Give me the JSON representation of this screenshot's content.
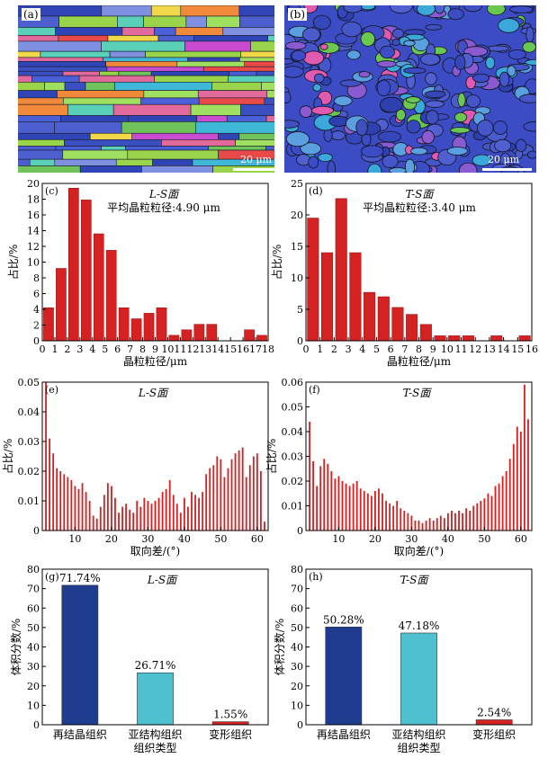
{
  "micrographs": [
    {
      "label": "(a)",
      "scale_bar": "20 μm"
    },
    {
      "label": "(b)",
      "scale_bar": "20 μm"
    }
  ],
  "colors": {
    "bar_red": "#d42222",
    "bar_navy": "#1f3c8f",
    "bar_cyan": "#4ec0d0",
    "bar_deform": "#d42222"
  },
  "chart_data": [
    {
      "type": "bar",
      "panel": "(c)",
      "title": "L-S面",
      "subtitle": "平均晶粒粒径:4.90 μm",
      "xlabel": "晶粒粒径/μm",
      "ylabel": "占比/%",
      "xlim": [
        0,
        18
      ],
      "ylim": [
        0,
        20
      ],
      "xticks": [
        0,
        1,
        2,
        3,
        4,
        5,
        6,
        7,
        8,
        9,
        10,
        11,
        12,
        13,
        14,
        15,
        16,
        17,
        18
      ],
      "yticks": [
        0,
        2,
        4,
        6,
        8,
        10,
        12,
        14,
        16,
        18,
        20
      ],
      "x": [
        0.5,
        1.5,
        2.5,
        3.5,
        4.5,
        5.5,
        6.5,
        7.5,
        8.5,
        9.5,
        10.5,
        11.5,
        12.5,
        13.5,
        16.5,
        17.5
      ],
      "values": [
        4.2,
        9.2,
        19.4,
        17.9,
        13.6,
        11.5,
        4.2,
        2.8,
        3.5,
        4.2,
        0.7,
        1.4,
        2.1,
        2.1,
        1.4,
        0.7
      ]
    },
    {
      "type": "bar",
      "panel": "(d)",
      "title": "T-S面",
      "subtitle": "平均晶粒粒径:3.40 μm",
      "xlabel": "晶粒粒径/μm",
      "ylabel": "占比/%",
      "xlim": [
        0,
        16
      ],
      "ylim": [
        0,
        25
      ],
      "xticks": [
        0,
        1,
        2,
        3,
        4,
        5,
        6,
        7,
        8,
        9,
        10,
        11,
        12,
        13,
        14,
        15,
        16
      ],
      "yticks": [
        0,
        5,
        10,
        15,
        20,
        25
      ],
      "x": [
        0.5,
        1.5,
        2.5,
        3.5,
        4.5,
        5.5,
        6.5,
        7.5,
        8.5,
        9.5,
        10.5,
        11.5,
        13.5,
        15.5
      ],
      "values": [
        19.5,
        14.0,
        22.6,
        14.0,
        7.7,
        7.0,
        5.3,
        4.2,
        2.6,
        0.8,
        0.8,
        0.8,
        0.8,
        0.8
      ]
    },
    {
      "type": "bar",
      "panel": "(e)",
      "title": "L-S面",
      "xlabel": "取向差/(°)",
      "ylabel": "占比/%",
      "xlim": [
        1,
        63
      ],
      "ylim": [
        0,
        0.05
      ],
      "xticks": [
        10,
        20,
        30,
        40,
        50,
        60
      ],
      "yticks": [
        0,
        0.01,
        0.02,
        0.03,
        0.04,
        0.05
      ],
      "x": [
        2,
        3,
        4,
        5,
        6,
        7,
        8,
        9,
        10,
        11,
        12,
        13,
        14,
        15,
        16,
        17,
        18,
        19,
        20,
        21,
        22,
        23,
        24,
        25,
        26,
        27,
        28,
        29,
        30,
        31,
        32,
        33,
        34,
        35,
        36,
        37,
        38,
        39,
        40,
        41,
        42,
        43,
        44,
        45,
        46,
        47,
        48,
        49,
        50,
        51,
        52,
        53,
        54,
        55,
        56,
        57,
        58,
        59,
        60,
        61,
        62
      ],
      "values": [
        0.05,
        0.031,
        0.026,
        0.021,
        0.02,
        0.019,
        0.018,
        0.017,
        0.015,
        0.014,
        0.016,
        0.013,
        0.01,
        0.005,
        0.004,
        0.008,
        0.012,
        0.016,
        0.015,
        0.011,
        0.006,
        0.008,
        0.009,
        0.007,
        0.006,
        0.01,
        0.008,
        0.011,
        0.01,
        0.009,
        0.01,
        0.011,
        0.013,
        0.014,
        0.017,
        0.012,
        0.009,
        0.006,
        0.011,
        0.008,
        0.013,
        0.012,
        0.011,
        0.013,
        0.019,
        0.021,
        0.022,
        0.025,
        0.024,
        0.018,
        0.021,
        0.024,
        0.026,
        0.027,
        0.028,
        0.018,
        0.022,
        0.025,
        0.026,
        0.02,
        0.003
      ],
      "title2": ""
    },
    {
      "type": "bar",
      "panel": "(f)",
      "title": "T-S面",
      "xlabel": "取向差/(°)",
      "ylabel": "占比/%",
      "xlim": [
        1,
        63
      ],
      "ylim": [
        0,
        0.06
      ],
      "xticks": [
        10,
        20,
        30,
        40,
        50,
        60
      ],
      "yticks": [
        0,
        0.01,
        0.02,
        0.03,
        0.04,
        0.05,
        0.06
      ],
      "x": [
        2,
        3,
        4,
        5,
        6,
        7,
        8,
        9,
        10,
        11,
        12,
        13,
        14,
        15,
        16,
        17,
        18,
        19,
        20,
        21,
        22,
        23,
        24,
        25,
        26,
        27,
        28,
        29,
        30,
        31,
        32,
        33,
        34,
        35,
        36,
        37,
        38,
        39,
        40,
        41,
        42,
        43,
        44,
        45,
        46,
        47,
        48,
        49,
        50,
        51,
        52,
        53,
        54,
        55,
        56,
        57,
        58,
        59,
        60,
        61,
        62
      ],
      "values": [
        0.044,
        0.028,
        0.018,
        0.026,
        0.029,
        0.027,
        0.024,
        0.021,
        0.022,
        0.02,
        0.019,
        0.018,
        0.019,
        0.02,
        0.017,
        0.016,
        0.015,
        0.014,
        0.016,
        0.017,
        0.015,
        0.012,
        0.011,
        0.01,
        0.012,
        0.009,
        0.008,
        0.007,
        0.006,
        0.004,
        0.004,
        0.003,
        0.004,
        0.005,
        0.004,
        0.005,
        0.006,
        0.005,
        0.007,
        0.008,
        0.007,
        0.008,
        0.007,
        0.009,
        0.008,
        0.01,
        0.011,
        0.012,
        0.013,
        0.015,
        0.014,
        0.018,
        0.019,
        0.022,
        0.024,
        0.029,
        0.035,
        0.042,
        0.04,
        0.059,
        0.045
      ],
      "title2": ""
    },
    {
      "type": "bar",
      "panel": "(g)",
      "title": "L-S面",
      "xlabel": "组织类型",
      "ylabel": "体积分数/%",
      "ylim": [
        0,
        80
      ],
      "yticks": [
        0,
        10,
        20,
        30,
        40,
        50,
        60,
        70,
        80
      ],
      "categories": [
        "再结晶组织",
        "亚结构组织",
        "变形组织"
      ],
      "values": [
        71.74,
        26.71,
        1.55
      ],
      "data_labels": [
        "71.74%",
        "26.71%",
        "1.55%"
      ]
    },
    {
      "type": "bar",
      "panel": "(h)",
      "title": "T-S面",
      "xlabel": "组织类型",
      "ylabel": "体积分数/%",
      "ylim": [
        0,
        80
      ],
      "yticks": [
        0,
        10,
        20,
        30,
        40,
        50,
        60,
        70,
        80
      ],
      "categories": [
        "再结晶组织",
        "亚结构组织",
        "变形组织"
      ],
      "values": [
        50.28,
        47.18,
        2.54
      ],
      "data_labels": [
        "50.28%",
        "47.18%",
        "2.54%"
      ]
    }
  ]
}
